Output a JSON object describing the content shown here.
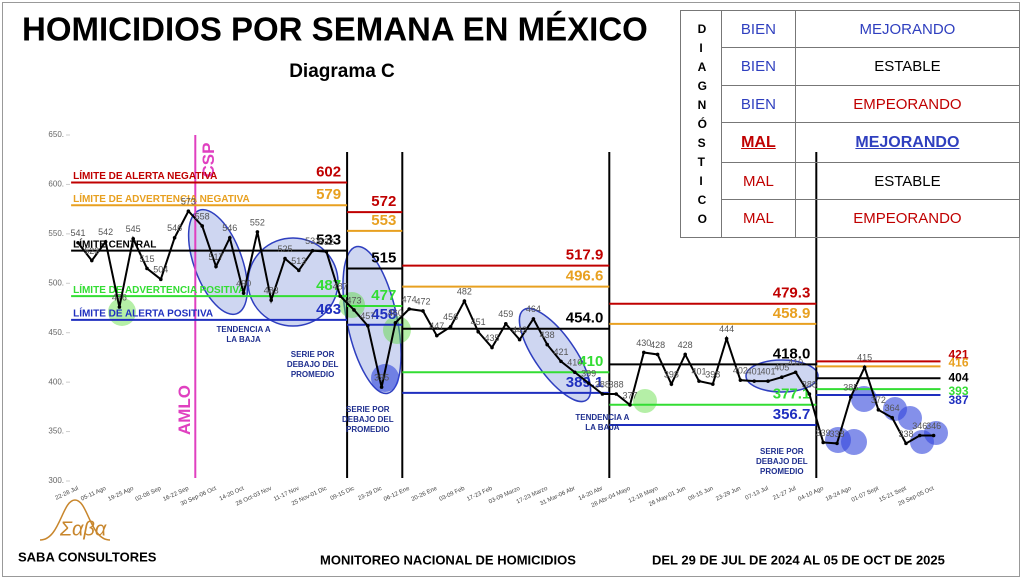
{
  "chart_data": {
    "type": "line",
    "title": "HOMICIDIOS POR SEMANA EN MÉXICO",
    "subtitle": "Diagrama C",
    "ylim": [
      300,
      650
    ],
    "yticks": [
      {
        "value": 300,
        "label": "300."
      },
      {
        "value": 350,
        "label": "350."
      },
      {
        "value": 400,
        "label": "400."
      },
      {
        "value": 450,
        "label": "450."
      },
      {
        "value": 500,
        "label": "500."
      },
      {
        "value": 550,
        "label": "550."
      },
      {
        "value": 600,
        "label": "600."
      },
      {
        "value": 650,
        "label": "650."
      }
    ],
    "categories": [
      "22-28 Jul",
      null,
      "05-11 Ago",
      null,
      "19-25 Ago",
      null,
      "02-08 Sep",
      null,
      "16-22 Sep",
      null,
      "30 Sep-06 Oct",
      null,
      "14-20 Oct",
      null,
      "28 Oct-03 Nov",
      null,
      "11-17 Nov",
      null,
      "25 Nov-01 Dic",
      null,
      "09-15 Dic",
      null,
      "23-29 Dic",
      null,
      "06-12 Ene",
      null,
      "20-26 Ene",
      null,
      "03-09 Feb",
      null,
      "17-23 Feb",
      null,
      "03-09 Marzo",
      null,
      "17-23 Marzo",
      null,
      "31 Mar-06 Abr",
      null,
      "14-20 Abr",
      null,
      "28 Abr-04 Mayo",
      null,
      "12-18 Mayo",
      null,
      "26 May-01 Jun",
      null,
      "09-15 Jun",
      null,
      "23-29 Jun",
      null,
      "07-13 Jul",
      null,
      "21-27 Jul",
      null,
      "04-10 Ago",
      null,
      "18-24 Ago",
      null,
      "01-07 Sept",
      null,
      "15-21 Sept",
      null,
      "29 Sep-05 Oct"
    ],
    "values": [
      541,
      523,
      542,
      476,
      545,
      515,
      504,
      546,
      573,
      558,
      517,
      546,
      490,
      552,
      483,
      525,
      513,
      533,
      532,
      487,
      473,
      457,
      395,
      460,
      474,
      472,
      447,
      456,
      482,
      451,
      435,
      459,
      443,
      464,
      438,
      421,
      410,
      399,
      388,
      388,
      377,
      430,
      428,
      398,
      428,
      401,
      398,
      444,
      402,
      401,
      401,
      405,
      410,
      388,
      339,
      338,
      385,
      415,
      372,
      364,
      338,
      346,
      346
    ],
    "color": "#000000",
    "periods": [
      {
        "from": 0,
        "to": 19,
        "lines": [
          {
            "name": "LÍMITE DE ALERTA NEGATIVA",
            "value": 602,
            "color": "#c00000"
          },
          {
            "name": "LÍMITE DE ADVERTENCIA NEGATIVA",
            "value": 579,
            "color": "#e8a020"
          },
          {
            "name": "LÍMITE CENTRAL",
            "value": 533,
            "color": "#000000"
          },
          {
            "name": "LÍMITE DE ADVERTENCIA POSITIVA",
            "value": 487,
            "color": "#33dd33"
          },
          {
            "name": "LÍMITE DE ALERTA POSITIVA",
            "value": 463,
            "color": "#1f2fbf"
          }
        ]
      },
      {
        "from": 20,
        "to": 23,
        "lines": [
          {
            "value": 572,
            "color": "#c00000"
          },
          {
            "value": 553,
            "color": "#e8a020"
          },
          {
            "value": 515,
            "color": "#000000"
          },
          {
            "value": 477,
            "color": "#33dd33"
          },
          {
            "value": 458,
            "color": "#1f2fbf"
          }
        ]
      },
      {
        "from": 24,
        "to": 38,
        "lines": [
          {
            "value": 517.9,
            "color": "#c00000"
          },
          {
            "value": 496.6,
            "color": "#e8a020"
          },
          {
            "value": 454.0,
            "label": "454.0",
            "color": "#000000"
          },
          {
            "value": 410,
            "color": "#33dd33"
          },
          {
            "value": 389.1,
            "color": "#1f2fbf"
          }
        ]
      },
      {
        "from": 39,
        "to": 53,
        "lines": [
          {
            "value": 479.3,
            "color": "#c00000"
          },
          {
            "value": 458.9,
            "color": "#e8a020"
          },
          {
            "value": 418.0,
            "label": "418.0",
            "color": "#000000"
          },
          {
            "value": 377.1,
            "color": "#33dd33"
          },
          {
            "value": 356.7,
            "color": "#1f2fbf"
          }
        ]
      },
      {
        "from": 54,
        "to": 62,
        "lines": [
          {
            "value": 421,
            "color": "#c00000"
          },
          {
            "value": 416,
            "color": "#e8a020"
          },
          {
            "value": 404,
            "color": "#000000"
          },
          {
            "value": 393,
            "color": "#33dd33"
          },
          {
            "value": 387,
            "color": "#1f2fbf"
          }
        ]
      }
    ],
    "marker": {
      "at": 8,
      "labels": [
        "CSP",
        "AMLO"
      ]
    },
    "annotations": [
      {
        "text": "TENDENCIA A LA BAJA",
        "at": 12
      },
      {
        "text": "SERIE POR DEBAJO DEL PROMEDIO",
        "at": 17
      },
      {
        "text": "SERIE POR DEBAJO DEL PROMEDIO",
        "at": 21
      },
      {
        "text": "TENDENCIA A LA BAJA",
        "at": 38
      },
      {
        "text": "SERIE POR DEBAJO DEL PROMEDIO",
        "at": 51
      }
    ]
  },
  "diagnostico": {
    "label": "DIAGNÓSTICO",
    "rows": [
      [
        "BIEN",
        "MEJORANDO"
      ],
      [
        "BIEN",
        "ESTABLE"
      ],
      [
        "BIEN",
        "EMPEORANDO"
      ],
      [
        "MAL",
        "MEJORANDO"
      ],
      [
        "MAL",
        "ESTABLE"
      ],
      [
        "MAL",
        "EMPEORANDO"
      ]
    ]
  },
  "footer": {
    "logo": "Σαβα",
    "company": "SABA CONSULTORES",
    "program": "MONITOREO NACIONAL DE HOMICIDIOS",
    "range": "DEL 29 DE JUL DE 2024 AL 05 DE OCT DE 2025"
  }
}
